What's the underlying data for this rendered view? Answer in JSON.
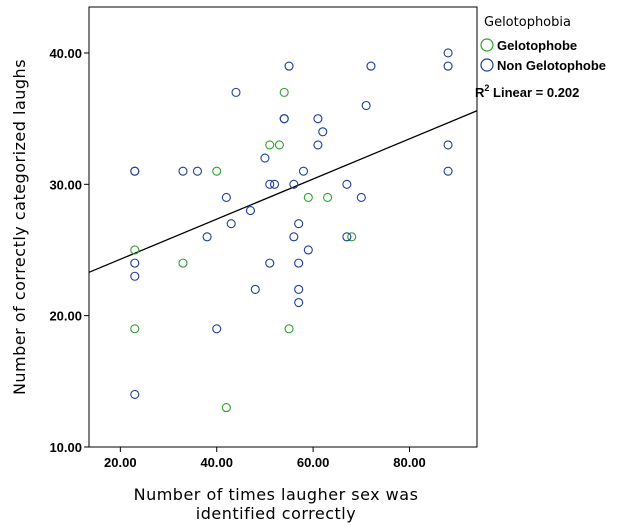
{
  "chart_data": {
    "type": "scatter",
    "xlabel_lines": [
      "Number of times laugher sex was",
      "identified correctly"
    ],
    "ylabel": "Number of correctly categorized laughs",
    "xlim": [
      13.5,
      94
    ],
    "ylim": [
      10,
      43.5
    ],
    "x_ticks": [
      "20.00",
      "40.00",
      "60.00",
      "80.00"
    ],
    "x_tick_values": [
      20,
      40,
      60,
      80
    ],
    "y_ticks": [
      "10.00",
      "20.00",
      "30.00",
      "40.00"
    ],
    "y_tick_values": [
      10,
      20,
      30,
      40
    ],
    "legend": {
      "title": "Gelotophobia",
      "placement": "right"
    },
    "series": [
      {
        "name": "Gelotophobe",
        "color": "#2ca02c",
        "marker": "open-circle",
        "points": [
          [
            23,
            25
          ],
          [
            23,
            19
          ],
          [
            33,
            24
          ],
          [
            40,
            31
          ],
          [
            42,
            13
          ],
          [
            51,
            33
          ],
          [
            53,
            33
          ],
          [
            54,
            37
          ],
          [
            55,
            19
          ],
          [
            59,
            29
          ],
          [
            63,
            29
          ],
          [
            68,
            26
          ]
        ]
      },
      {
        "name": "Non Gelotophobe",
        "color": "#1f3d99",
        "marker": "open-circle",
        "points": [
          [
            23,
            31
          ],
          [
            23,
            31
          ],
          [
            23,
            24
          ],
          [
            23,
            23
          ],
          [
            23,
            14
          ],
          [
            33,
            31
          ],
          [
            36,
            31
          ],
          [
            38,
            26
          ],
          [
            40,
            19
          ],
          [
            42,
            29
          ],
          [
            43,
            27
          ],
          [
            44,
            37
          ],
          [
            47,
            28
          ],
          [
            48,
            22
          ],
          [
            50,
            32
          ],
          [
            51,
            30
          ],
          [
            51,
            24
          ],
          [
            52,
            30
          ],
          [
            54,
            35
          ],
          [
            54,
            35
          ],
          [
            55,
            39
          ],
          [
            56,
            30
          ],
          [
            56,
            26
          ],
          [
            57,
            27
          ],
          [
            57,
            24
          ],
          [
            57,
            22
          ],
          [
            57,
            21
          ],
          [
            58,
            31
          ],
          [
            59,
            25
          ],
          [
            61,
            33
          ],
          [
            61,
            35
          ],
          [
            62,
            34
          ],
          [
            67,
            30
          ],
          [
            67,
            26
          ],
          [
            70,
            29
          ],
          [
            71,
            36
          ],
          [
            72,
            39
          ],
          [
            88,
            40
          ],
          [
            88,
            39
          ],
          [
            88,
            33
          ],
          [
            88,
            31
          ]
        ]
      }
    ],
    "fit_line": {
      "type": "linear",
      "label_prefix": "R",
      "label_superscript": "2",
      "label_suffix": " Linear = 0.202",
      "endpoints": [
        [
          13.5,
          23.3
        ],
        [
          94,
          35.6
        ]
      ]
    },
    "grid": false
  }
}
